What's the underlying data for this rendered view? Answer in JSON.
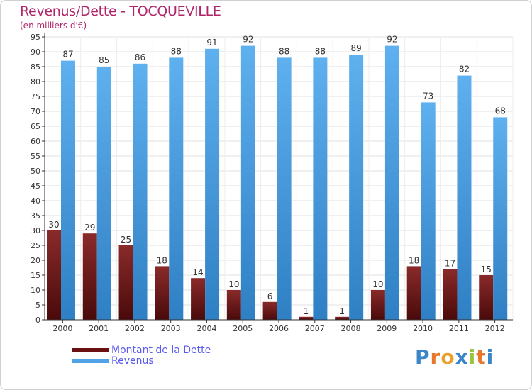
{
  "header": {
    "title": "Revenus/Dette - TOCQUEVILLE",
    "subtitle": "(en milliers d'€)"
  },
  "legend": {
    "dette_label": "Montant de la Dette",
    "revenus_label": "Revenus"
  },
  "logo": {
    "text": "Proxiti",
    "colors": [
      "#3a86c8",
      "#e8762b",
      "#e8a12b",
      "#3a86c8",
      "#9bc43c",
      "#e8762b",
      "#3a86c8"
    ]
  },
  "chart_data": {
    "type": "bar",
    "title": "Revenus/Dette - TOCQUEVILLE",
    "subtitle": "(en milliers d'€)",
    "categories": [
      "2000",
      "2001",
      "2002",
      "2003",
      "2004",
      "2005",
      "2006",
      "2007",
      "2008",
      "2009",
      "2010",
      "2011",
      "2012"
    ],
    "series": [
      {
        "name": "Montant de la Dette",
        "color": "#7a1a1a",
        "values": [
          30,
          29,
          25,
          18,
          14,
          10,
          6,
          1,
          1,
          10,
          18,
          17,
          15
        ]
      },
      {
        "name": "Revenus",
        "color": "#4fa3e6",
        "values": [
          87,
          85,
          86,
          88,
          91,
          92,
          88,
          88,
          89,
          92,
          73,
          82,
          68
        ]
      }
    ],
    "ylim": [
      0,
      95
    ],
    "yticks": [
      0,
      5,
      10,
      15,
      20,
      25,
      30,
      35,
      40,
      45,
      50,
      55,
      60,
      65,
      70,
      75,
      80,
      85,
      90,
      95
    ],
    "grid": true,
    "legend_position": "bottom-left"
  }
}
